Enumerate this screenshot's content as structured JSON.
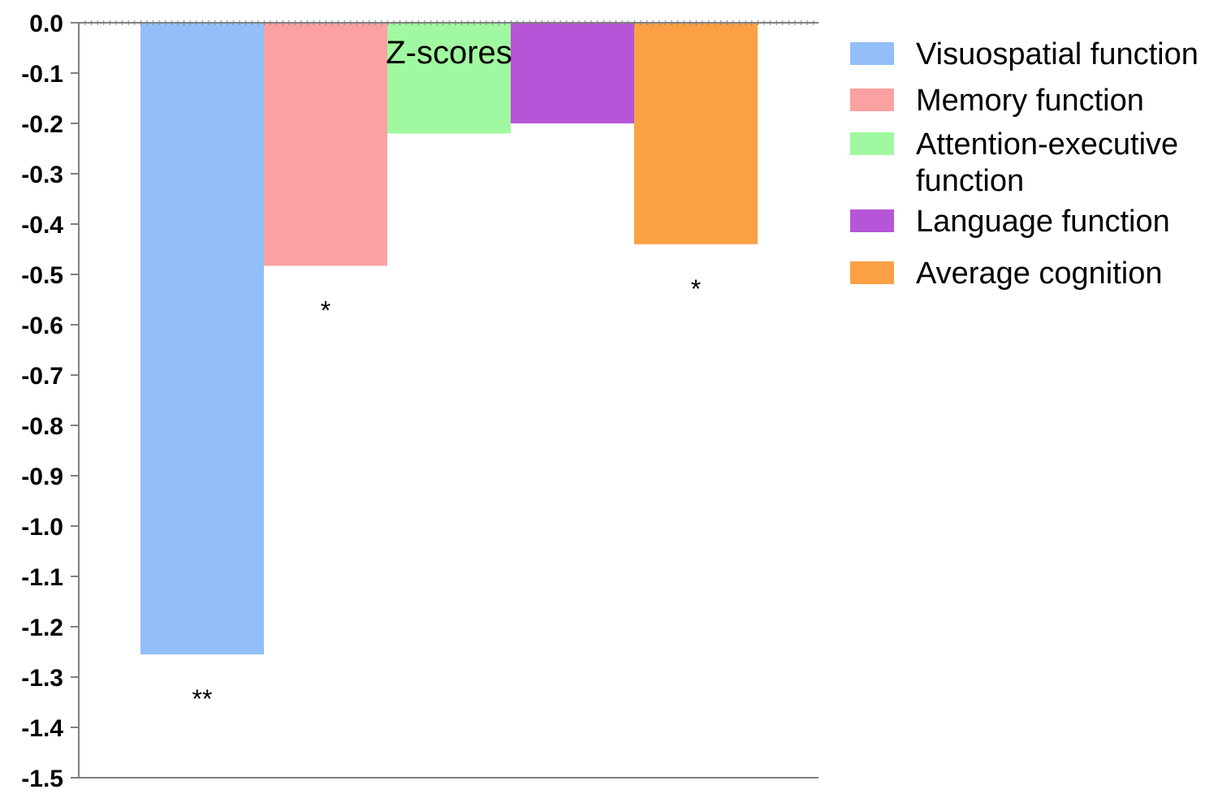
{
  "chart_data": {
    "type": "bar",
    "title": "Z-scores",
    "xlabel": "",
    "ylabel": "",
    "ylim": [
      -1.5,
      0.0
    ],
    "yticks": [
      "0.0",
      "-0.1",
      "-0.2",
      "-0.3",
      "-0.4",
      "-0.5",
      "-0.6",
      "-0.7",
      "-0.8",
      "-0.9",
      "-1.0",
      "-1.1",
      "-1.2",
      "-1.3",
      "-1.4",
      "-1.5"
    ],
    "grid": false,
    "legend_position": "right",
    "series": [
      {
        "name": "Visuospatial function",
        "value": -1.255,
        "color": "#92bff7",
        "significance": "**"
      },
      {
        "name": "Memory function",
        "value": -0.483,
        "color": "#fba1a1",
        "significance": "*"
      },
      {
        "name": "Attention-executive function",
        "value": -0.22,
        "color": "#a0f9a0",
        "significance": ""
      },
      {
        "name": "Language function",
        "value": -0.2,
        "color": "#b655d7",
        "significance": ""
      },
      {
        "name": "Average cognition",
        "value": -0.44,
        "color": "#fca045",
        "significance": "*"
      }
    ]
  }
}
